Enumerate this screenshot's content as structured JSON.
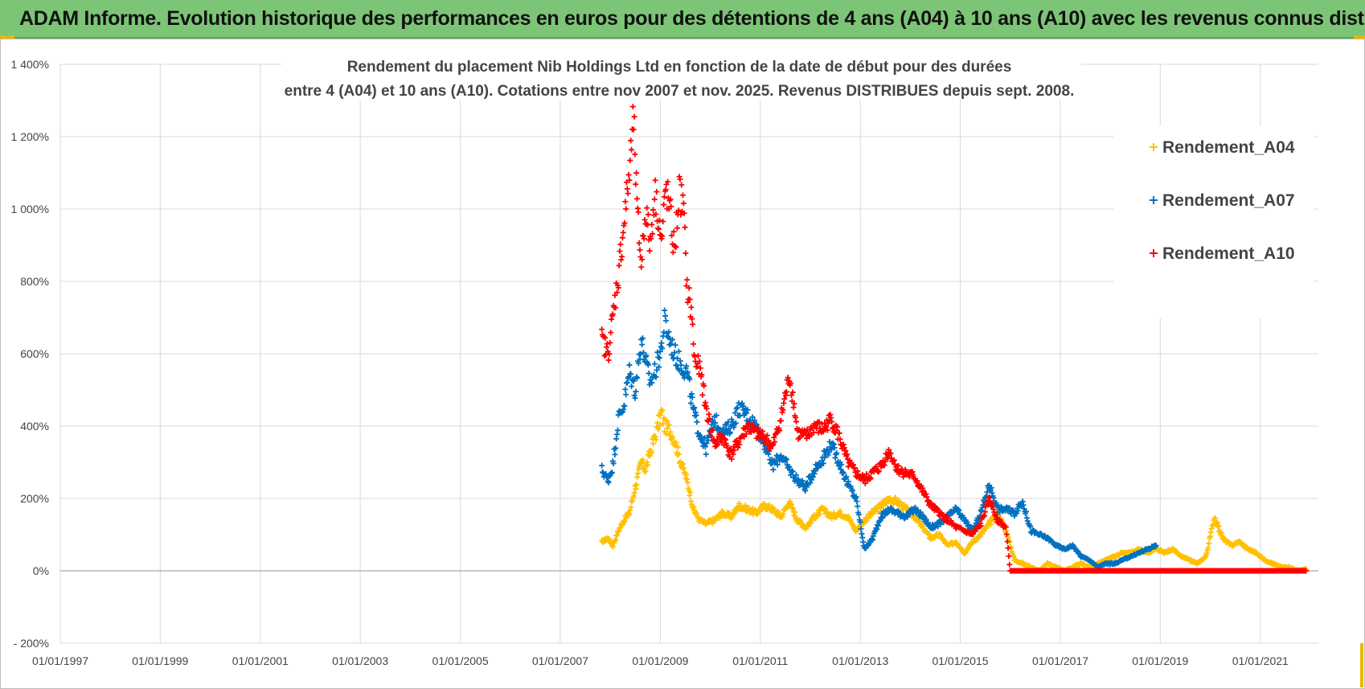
{
  "banner": {
    "title": "ADAM Informe. Evolution historique des performances en euros pour des détentions de 4 ans (A04) à 10 ans (A10) avec les revenus connus distribués",
    "color": "#7CC576"
  },
  "chart_data": {
    "type": "scatter",
    "title_lines": [
      "Rendement du placement Nib Holdings Ltd en fonction de la date de début pour des durées",
      "entre 4 (A04) et 10 ans (A10).  Cotations entre nov 2007 et nov. 2025. Revenus DISTRIBUES depuis sept. 2008."
    ],
    "xlabel": "",
    "ylabel": "",
    "x_type": "date",
    "x_ticks": [
      "01/01/1997",
      "01/01/1999",
      "01/01/2001",
      "01/01/2003",
      "01/01/2005",
      "01/01/2007",
      "01/01/2009",
      "01/01/2011",
      "01/01/2013",
      "01/01/2015",
      "01/01/2017",
      "01/01/2019",
      "01/01/2021"
    ],
    "xlim": [
      "1997-01-01",
      "2022-03-01"
    ],
    "ylim": [
      -200,
      1400
    ],
    "y_ticks": [
      -200,
      0,
      200,
      400,
      600,
      800,
      1000,
      1200,
      1400
    ],
    "y_tick_labels": [
      "- 200%",
      "0%",
      "200%",
      "400%",
      "600%",
      "800%",
      "1 000%",
      "1 200%",
      "1 400%"
    ],
    "grid": true,
    "legend_position": "top-right",
    "series": [
      {
        "name": "Rendement_A04",
        "color": "#FFC000",
        "points": [
          [
            "2007-11-01",
            80
          ],
          [
            "2007-12-15",
            90
          ],
          [
            "2008-01-20",
            70
          ],
          [
            "2008-03-01",
            110
          ],
          [
            "2008-04-10",
            140
          ],
          [
            "2008-05-20",
            160
          ],
          [
            "2008-07-01",
            230
          ],
          [
            "2008-08-15",
            300
          ],
          [
            "2008-09-15",
            280
          ],
          [
            "2008-10-20",
            330
          ],
          [
            "2008-12-01",
            380
          ],
          [
            "2009-01-10",
            440
          ],
          [
            "2009-02-01",
            400
          ],
          [
            "2009-03-10",
            390
          ],
          [
            "2009-04-15",
            360
          ],
          [
            "2009-06-01",
            300
          ],
          [
            "2009-07-15",
            250
          ],
          [
            "2009-09-01",
            170
          ],
          [
            "2009-10-15",
            140
          ],
          [
            "2009-12-01",
            130
          ],
          [
            "2010-02-01",
            140
          ],
          [
            "2010-04-01",
            160
          ],
          [
            "2010-06-01",
            150
          ],
          [
            "2010-08-01",
            180
          ],
          [
            "2010-10-01",
            170
          ],
          [
            "2010-12-01",
            160
          ],
          [
            "2011-02-01",
            180
          ],
          [
            "2011-04-01",
            170
          ],
          [
            "2011-06-01",
            150
          ],
          [
            "2011-08-01",
            190
          ],
          [
            "2011-10-01",
            140
          ],
          [
            "2011-12-01",
            120
          ],
          [
            "2012-02-01",
            150
          ],
          [
            "2012-04-01",
            170
          ],
          [
            "2012-06-01",
            150
          ],
          [
            "2012-08-01",
            160
          ],
          [
            "2012-10-01",
            150
          ],
          [
            "2012-12-01",
            110
          ],
          [
            "2013-02-01",
            140
          ],
          [
            "2013-04-01",
            160
          ],
          [
            "2013-06-01",
            180
          ],
          [
            "2013-08-01",
            200
          ],
          [
            "2013-10-01",
            190
          ],
          [
            "2013-12-01",
            170
          ],
          [
            "2014-02-01",
            150
          ],
          [
            "2014-04-01",
            120
          ],
          [
            "2014-06-01",
            90
          ],
          [
            "2014-08-01",
            100
          ],
          [
            "2014-10-01",
            70
          ],
          [
            "2014-12-01",
            80
          ],
          [
            "2015-02-01",
            50
          ],
          [
            "2015-04-01",
            80
          ],
          [
            "2015-06-01",
            100
          ],
          [
            "2015-08-01",
            130
          ],
          [
            "2015-10-01",
            160
          ],
          [
            "2015-12-01",
            110
          ],
          [
            "2016-02-01",
            30
          ],
          [
            "2016-04-01",
            20
          ],
          [
            "2016-06-01",
            10
          ],
          [
            "2016-08-01",
            0
          ],
          [
            "2016-10-01",
            20
          ],
          [
            "2016-12-01",
            10
          ],
          [
            "2017-02-01",
            0
          ],
          [
            "2017-04-01",
            10
          ],
          [
            "2017-06-01",
            20
          ],
          [
            "2017-08-01",
            10
          ],
          [
            "2017-10-01",
            20
          ],
          [
            "2017-12-01",
            30
          ],
          [
            "2018-02-01",
            40
          ],
          [
            "2018-04-01",
            50
          ],
          [
            "2018-06-01",
            50
          ],
          [
            "2018-08-01",
            60
          ],
          [
            "2018-10-01",
            50
          ],
          [
            "2018-12-01",
            60
          ],
          [
            "2019-02-01",
            50
          ],
          [
            "2019-04-01",
            60
          ],
          [
            "2019-06-01",
            40
          ],
          [
            "2019-08-01",
            30
          ],
          [
            "2019-10-01",
            20
          ],
          [
            "2019-12-01",
            40
          ],
          [
            "2020-02-01",
            150
          ],
          [
            "2020-04-01",
            90
          ],
          [
            "2020-06-01",
            70
          ],
          [
            "2020-08-01",
            80
          ],
          [
            "2020-10-01",
            60
          ],
          [
            "2020-12-01",
            50
          ],
          [
            "2021-02-01",
            30
          ],
          [
            "2021-04-01",
            20
          ],
          [
            "2021-06-01",
            10
          ],
          [
            "2021-08-01",
            10
          ],
          [
            "2021-10-01",
            0
          ],
          [
            "2021-12-01",
            5
          ]
        ]
      },
      {
        "name": "Rendement_A07",
        "color": "#0070C0",
        "points": [
          [
            "2007-11-01",
            280
          ],
          [
            "2007-12-15",
            250
          ],
          [
            "2008-01-20",
            290
          ],
          [
            "2008-03-01",
            420
          ],
          [
            "2008-04-10",
            460
          ],
          [
            "2008-05-20",
            550
          ],
          [
            "2008-07-01",
            500
          ],
          [
            "2008-08-15",
            640
          ],
          [
            "2008-09-15",
            580
          ],
          [
            "2008-10-20",
            520
          ],
          [
            "2008-12-01",
            560
          ],
          [
            "2009-01-10",
            620
          ],
          [
            "2009-02-01",
            690
          ],
          [
            "2009-03-10",
            640
          ],
          [
            "2009-04-15",
            600
          ],
          [
            "2009-06-01",
            570
          ],
          [
            "2009-07-15",
            550
          ],
          [
            "2009-09-01",
            440
          ],
          [
            "2009-10-15",
            380
          ],
          [
            "2009-12-01",
            340
          ],
          [
            "2010-02-01",
            420
          ],
          [
            "2010-04-01",
            380
          ],
          [
            "2010-06-01",
            400
          ],
          [
            "2010-08-01",
            450
          ],
          [
            "2010-10-01",
            430
          ],
          [
            "2010-12-01",
            400
          ],
          [
            "2011-02-01",
            350
          ],
          [
            "2011-04-01",
            290
          ],
          [
            "2011-06-01",
            320
          ],
          [
            "2011-08-01",
            280
          ],
          [
            "2011-10-01",
            250
          ],
          [
            "2011-12-01",
            230
          ],
          [
            "2012-02-01",
            280
          ],
          [
            "2012-04-01",
            310
          ],
          [
            "2012-06-01",
            350
          ],
          [
            "2012-08-01",
            300
          ],
          [
            "2012-10-01",
            240
          ],
          [
            "2012-12-01",
            200
          ],
          [
            "2013-02-01",
            60
          ],
          [
            "2013-04-01",
            90
          ],
          [
            "2013-06-01",
            150
          ],
          [
            "2013-08-01",
            170
          ],
          [
            "2013-10-01",
            160
          ],
          [
            "2013-12-01",
            150
          ],
          [
            "2014-02-01",
            170
          ],
          [
            "2014-04-01",
            150
          ],
          [
            "2014-06-01",
            120
          ],
          [
            "2014-08-01",
            130
          ],
          [
            "2014-10-01",
            150
          ],
          [
            "2014-12-01",
            170
          ],
          [
            "2015-02-01",
            140
          ],
          [
            "2015-04-01",
            110
          ],
          [
            "2015-06-01",
            160
          ],
          [
            "2015-08-01",
            240
          ],
          [
            "2015-10-01",
            170
          ],
          [
            "2015-12-01",
            170
          ],
          [
            "2016-02-01",
            160
          ],
          [
            "2016-04-01",
            190
          ],
          [
            "2016-06-01",
            110
          ],
          [
            "2016-08-01",
            100
          ],
          [
            "2016-10-01",
            90
          ],
          [
            "2016-12-01",
            70
          ],
          [
            "2017-02-01",
            60
          ],
          [
            "2017-04-01",
            70
          ],
          [
            "2017-06-01",
            40
          ],
          [
            "2017-08-01",
            30
          ],
          [
            "2017-10-01",
            10
          ],
          [
            "2017-12-01",
            20
          ],
          [
            "2018-02-01",
            20
          ],
          [
            "2018-04-01",
            30
          ],
          [
            "2018-06-01",
            40
          ],
          [
            "2018-08-01",
            50
          ],
          [
            "2018-10-01",
            60
          ],
          [
            "2018-12-01",
            70
          ]
        ]
      },
      {
        "name": "Rendement_A10",
        "color": "#FF0000",
        "points": [
          [
            "2007-11-01",
            640
          ],
          [
            "2007-12-15",
            600
          ],
          [
            "2008-01-20",
            700
          ],
          [
            "2008-03-01",
            820
          ],
          [
            "2008-04-10",
            960
          ],
          [
            "2008-05-20",
            1100
          ],
          [
            "2008-06-20",
            1250
          ],
          [
            "2008-07-15",
            1000
          ],
          [
            "2008-08-15",
            850
          ],
          [
            "2008-09-15",
            1000
          ],
          [
            "2008-10-20",
            900
          ],
          [
            "2008-11-20",
            1050
          ],
          [
            "2008-12-20",
            980
          ],
          [
            "2009-01-10",
            900
          ],
          [
            "2009-02-10",
            1060
          ],
          [
            "2009-03-10",
            1000
          ],
          [
            "2009-04-15",
            880
          ],
          [
            "2009-05-20",
            1050
          ],
          [
            "2009-06-20",
            1000
          ],
          [
            "2009-07-15",
            780
          ],
          [
            "2009-08-15",
            720
          ],
          [
            "2009-09-10",
            580
          ],
          [
            "2009-10-15",
            560
          ],
          [
            "2009-12-01",
            450
          ],
          [
            "2010-02-01",
            350
          ],
          [
            "2010-04-01",
            370
          ],
          [
            "2010-06-01",
            320
          ],
          [
            "2010-08-01",
            360
          ],
          [
            "2010-10-01",
            400
          ],
          [
            "2010-12-01",
            380
          ],
          [
            "2011-02-01",
            370
          ],
          [
            "2011-04-01",
            340
          ],
          [
            "2011-06-01",
            420
          ],
          [
            "2011-08-01",
            540
          ],
          [
            "2011-09-01",
            470
          ],
          [
            "2011-10-01",
            380
          ],
          [
            "2011-12-01",
            370
          ],
          [
            "2012-02-01",
            400
          ],
          [
            "2012-04-01",
            390
          ],
          [
            "2012-06-01",
            420
          ],
          [
            "2012-08-01",
            370
          ],
          [
            "2012-10-01",
            300
          ],
          [
            "2012-12-01",
            270
          ],
          [
            "2013-02-01",
            250
          ],
          [
            "2013-04-01",
            270
          ],
          [
            "2013-06-01",
            290
          ],
          [
            "2013-08-01",
            330
          ],
          [
            "2013-10-01",
            280
          ],
          [
            "2013-12-01",
            270
          ],
          [
            "2014-02-01",
            260
          ],
          [
            "2014-04-01",
            220
          ],
          [
            "2014-06-01",
            180
          ],
          [
            "2014-08-01",
            160
          ],
          [
            "2014-10-01",
            140
          ],
          [
            "2014-12-01",
            120
          ],
          [
            "2015-02-01",
            110
          ],
          [
            "2015-04-01",
            100
          ],
          [
            "2015-06-01",
            130
          ],
          [
            "2015-08-01",
            200
          ],
          [
            "2015-10-01",
            140
          ],
          [
            "2015-12-01",
            120
          ],
          [
            "2016-01-01",
            0
          ],
          [
            "2016-06-01",
            0
          ],
          [
            "2017-01-01",
            0
          ],
          [
            "2017-06-01",
            0
          ],
          [
            "2018-01-01",
            0
          ],
          [
            "2018-06-01",
            0
          ],
          [
            "2019-01-01",
            0
          ],
          [
            "2019-06-01",
            0
          ],
          [
            "2020-01-01",
            0
          ],
          [
            "2020-06-01",
            0
          ],
          [
            "2021-01-01",
            0
          ],
          [
            "2021-06-01",
            0
          ],
          [
            "2021-12-01",
            0
          ]
        ]
      }
    ]
  }
}
